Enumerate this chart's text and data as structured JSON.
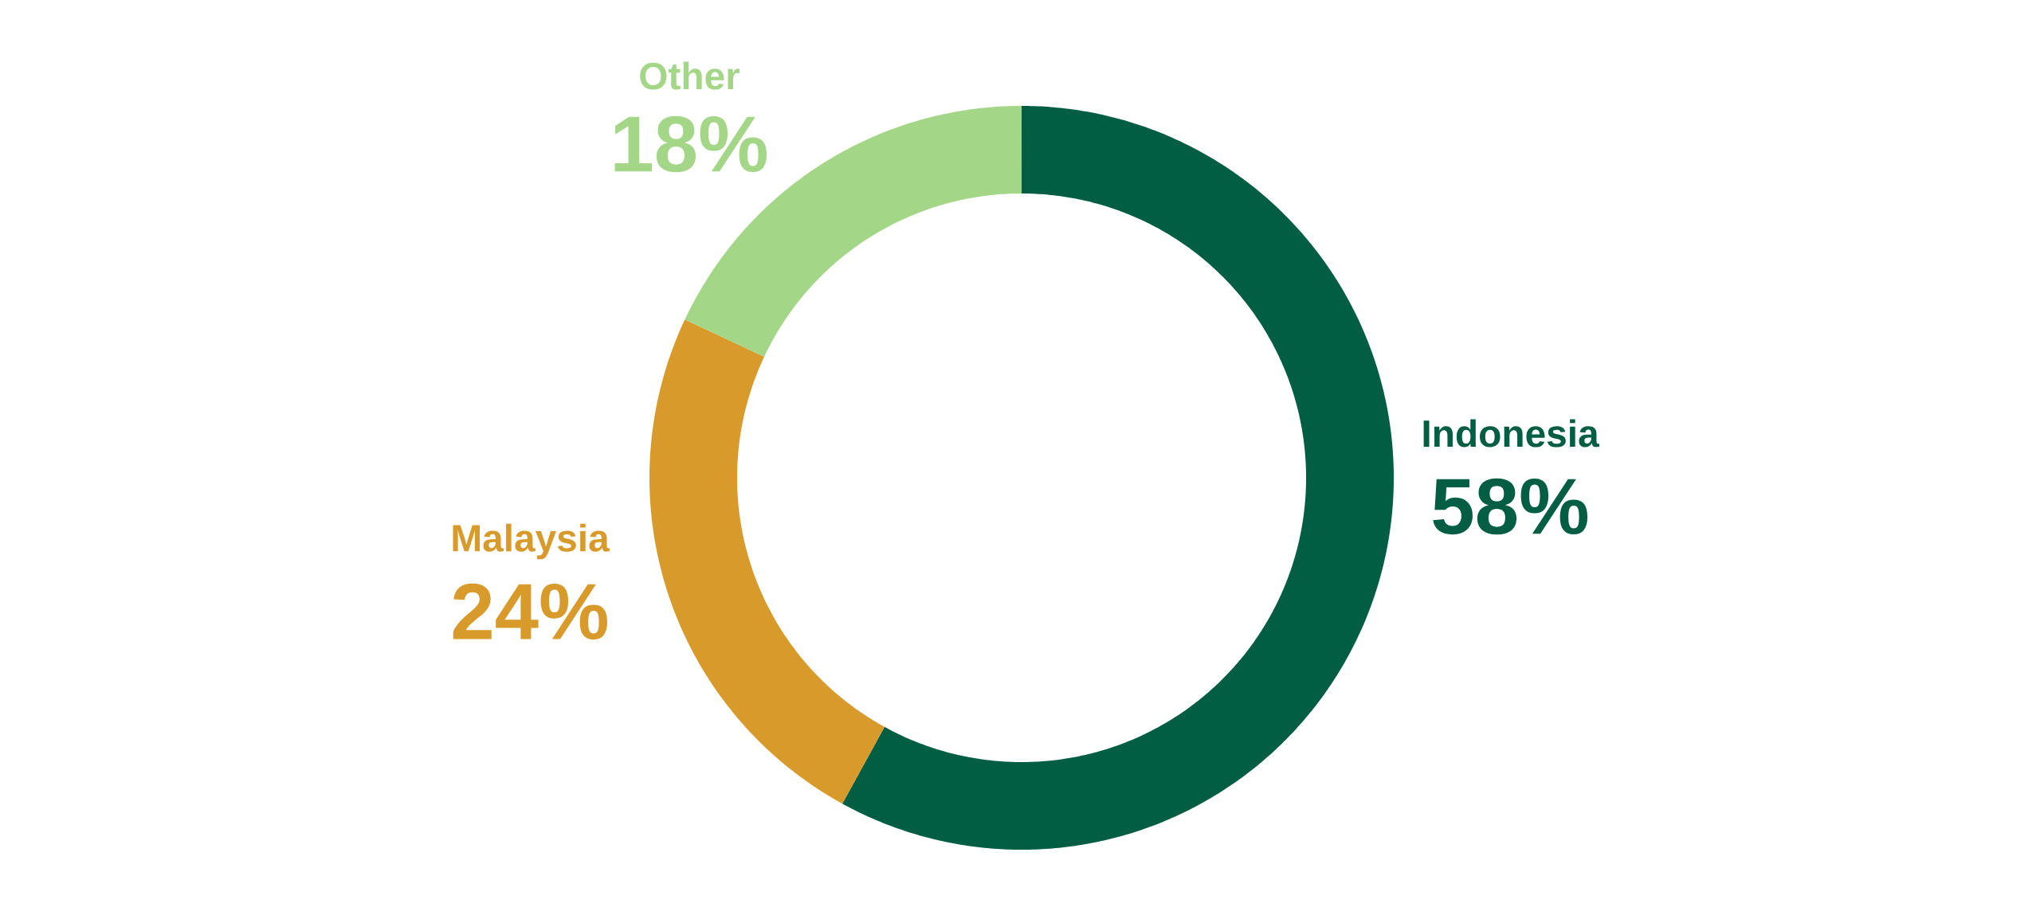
{
  "chart_data": {
    "type": "donut",
    "categories": [
      "Indonesia",
      "Malaysia",
      "Other"
    ],
    "values": [
      58,
      24,
      18
    ],
    "colors": [
      "#025e43",
      "#d89a2b",
      "#a3d687"
    ],
    "value_labels": [
      "58%",
      "24%",
      "18%"
    ]
  }
}
